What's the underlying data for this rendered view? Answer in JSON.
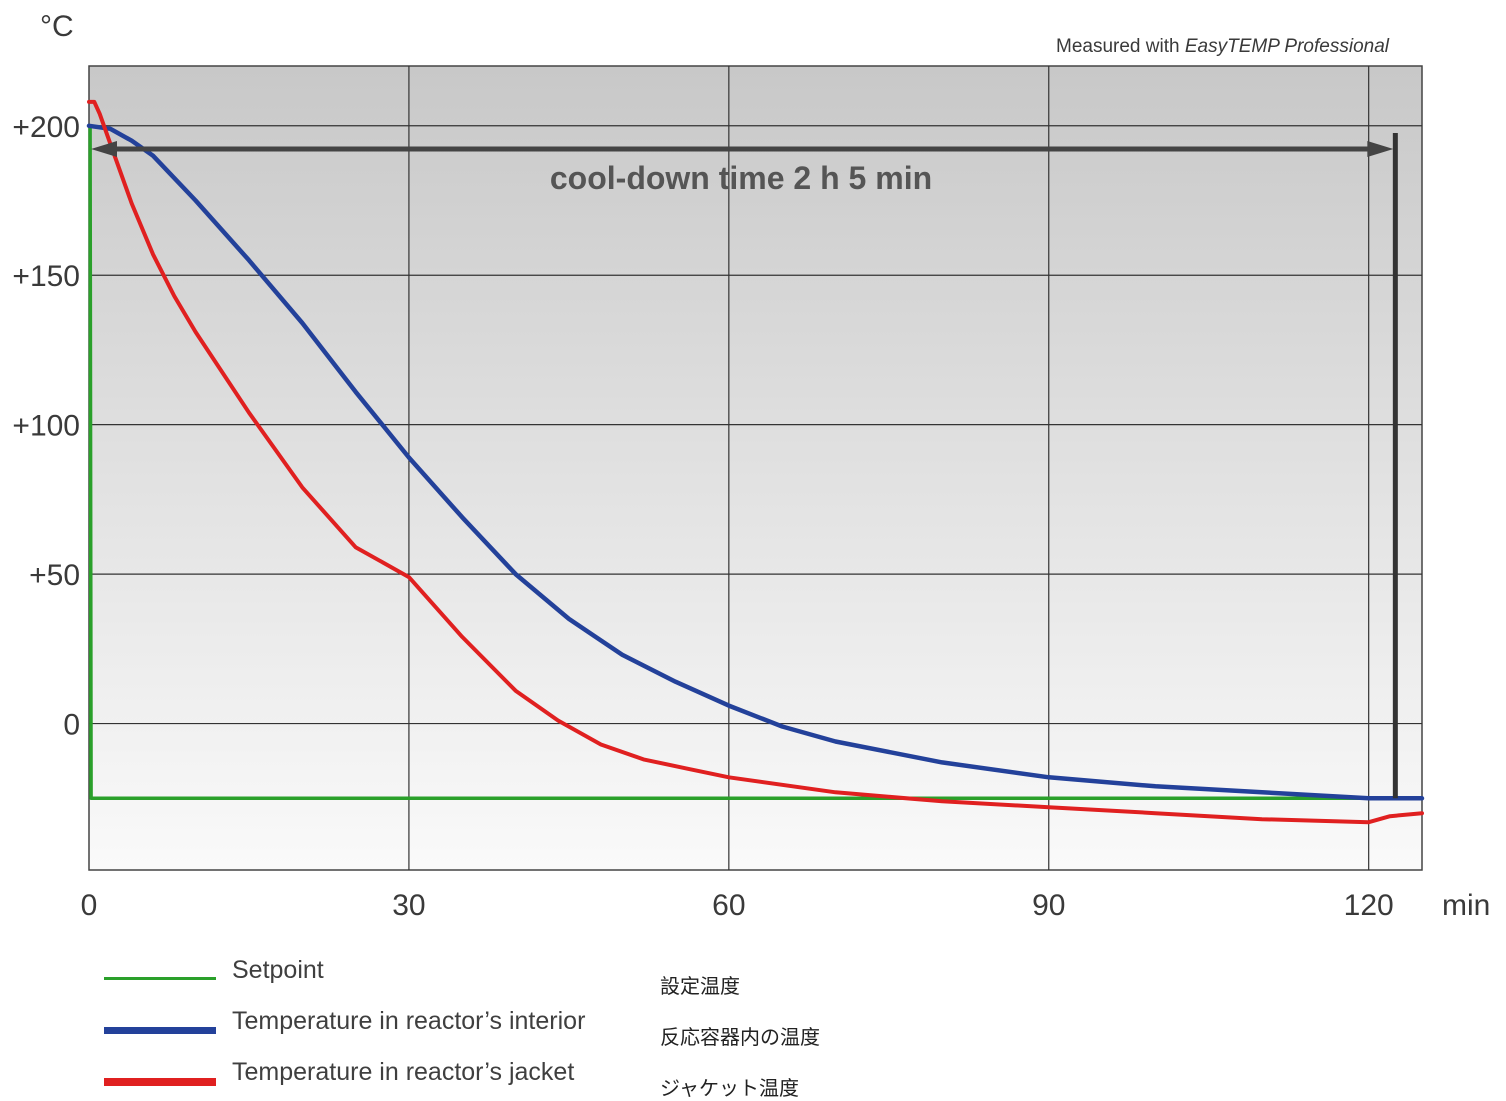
{
  "chart_data": {
    "type": "line",
    "y_unit": "°C",
    "x_unit": "min",
    "note_prefix": "Measured with ",
    "note_product": "EasyTEMP Professional",
    "annotation": "cool-down time 2 h 5 min",
    "xlim": [
      0,
      125
    ],
    "ylim": [
      -49,
      220
    ],
    "x_ticks": [
      0,
      30,
      60,
      90,
      120
    ],
    "x_tick_labels": [
      "0",
      "30",
      "60",
      "90",
      "120"
    ],
    "y_ticks": [
      200,
      150,
      100,
      50,
      0
    ],
    "y_tick_labels": [
      "+200",
      "+150",
      "+100",
      "+50",
      "0"
    ],
    "grid": true,
    "series": [
      {
        "name": "Setpoint",
        "name_jp": "設定温度",
        "color": "#2aa02a",
        "x": [
          0,
          0.1,
          0.2,
          125
        ],
        "y": [
          200,
          200,
          -25,
          -25
        ]
      },
      {
        "name": "Temperature in reactor’s interior",
        "name_jp": "反応容器内の温度",
        "color": "#23419a",
        "x": [
          0,
          2,
          4,
          6,
          10,
          15,
          20,
          25,
          30,
          35,
          40,
          45,
          50,
          55,
          60,
          65,
          70,
          80,
          90,
          100,
          110,
          120,
          125
        ],
        "y": [
          200,
          199,
          195,
          190,
          175,
          155,
          134,
          111,
          89,
          69,
          50,
          35,
          23,
          14,
          6,
          -1,
          -6,
          -13,
          -18,
          -21,
          -23,
          -25,
          -25
        ]
      },
      {
        "name": "Temperature in reactor’s jacket",
        "name_jp": "ジャケット温度",
        "color": "#e02020",
        "x": [
          0,
          0.5,
          1,
          2,
          4,
          6,
          8,
          10,
          15,
          20,
          25,
          30,
          35,
          40,
          44,
          48,
          52,
          56,
          60,
          70,
          80,
          90,
          100,
          110,
          120,
          122,
          125
        ],
        "y": [
          208,
          208,
          204,
          194,
          174,
          157,
          143,
          131,
          104,
          79,
          59,
          49,
          29,
          11,
          1,
          -7,
          -12,
          -15,
          -18,
          -23,
          -26,
          -28,
          -30,
          -32,
          -33,
          -31,
          -30
        ]
      }
    ]
  }
}
